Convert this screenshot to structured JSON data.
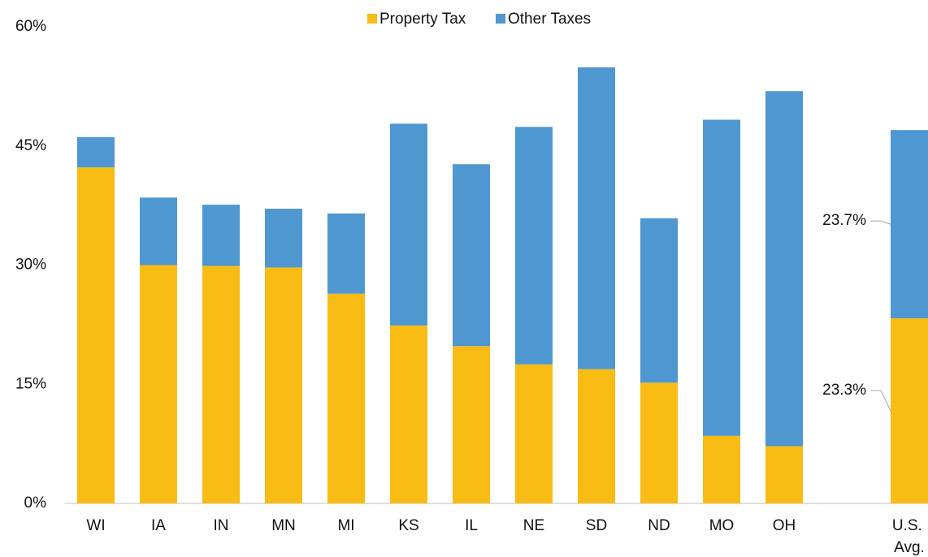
{
  "chart_data": {
    "type": "stacked-bar",
    "categories": [
      "WI",
      "IA",
      "IN",
      "MN",
      "MI",
      "KS",
      "IL",
      "NE",
      "SD",
      "ND",
      "MO",
      "OH",
      null,
      "U.S. Avg."
    ],
    "series": [
      {
        "name": "Property Tax",
        "color": "#f9bc15",
        "values": [
          42.3,
          30.0,
          29.9,
          29.7,
          26.4,
          22.4,
          19.8,
          17.5,
          16.9,
          15.2,
          8.5,
          7.2,
          null,
          23.3
        ],
        "value_labels": [
          null,
          null,
          null,
          null,
          null,
          null,
          null,
          null,
          null,
          null,
          null,
          null,
          null,
          "23.3%"
        ]
      },
      {
        "name": "Other Taxes",
        "color": "#4f97d1",
        "values": [
          3.8,
          8.5,
          7.7,
          7.4,
          10.1,
          25.4,
          22.9,
          29.9,
          38.0,
          20.7,
          39.8,
          44.7,
          null,
          23.7
        ],
        "value_labels": [
          null,
          null,
          null,
          null,
          null,
          null,
          null,
          null,
          null,
          null,
          null,
          null,
          null,
          "23.7%"
        ]
      }
    ],
    "ylim": [
      0,
      60
    ],
    "yticks": [
      {
        "value": 0,
        "label": "0%"
      },
      {
        "value": 15,
        "label": "15%"
      },
      {
        "value": 30,
        "label": "30%"
      },
      {
        "value": 45,
        "label": "45%"
      },
      {
        "value": 60,
        "label": "60%"
      }
    ],
    "legend": "top",
    "grid": false
  }
}
